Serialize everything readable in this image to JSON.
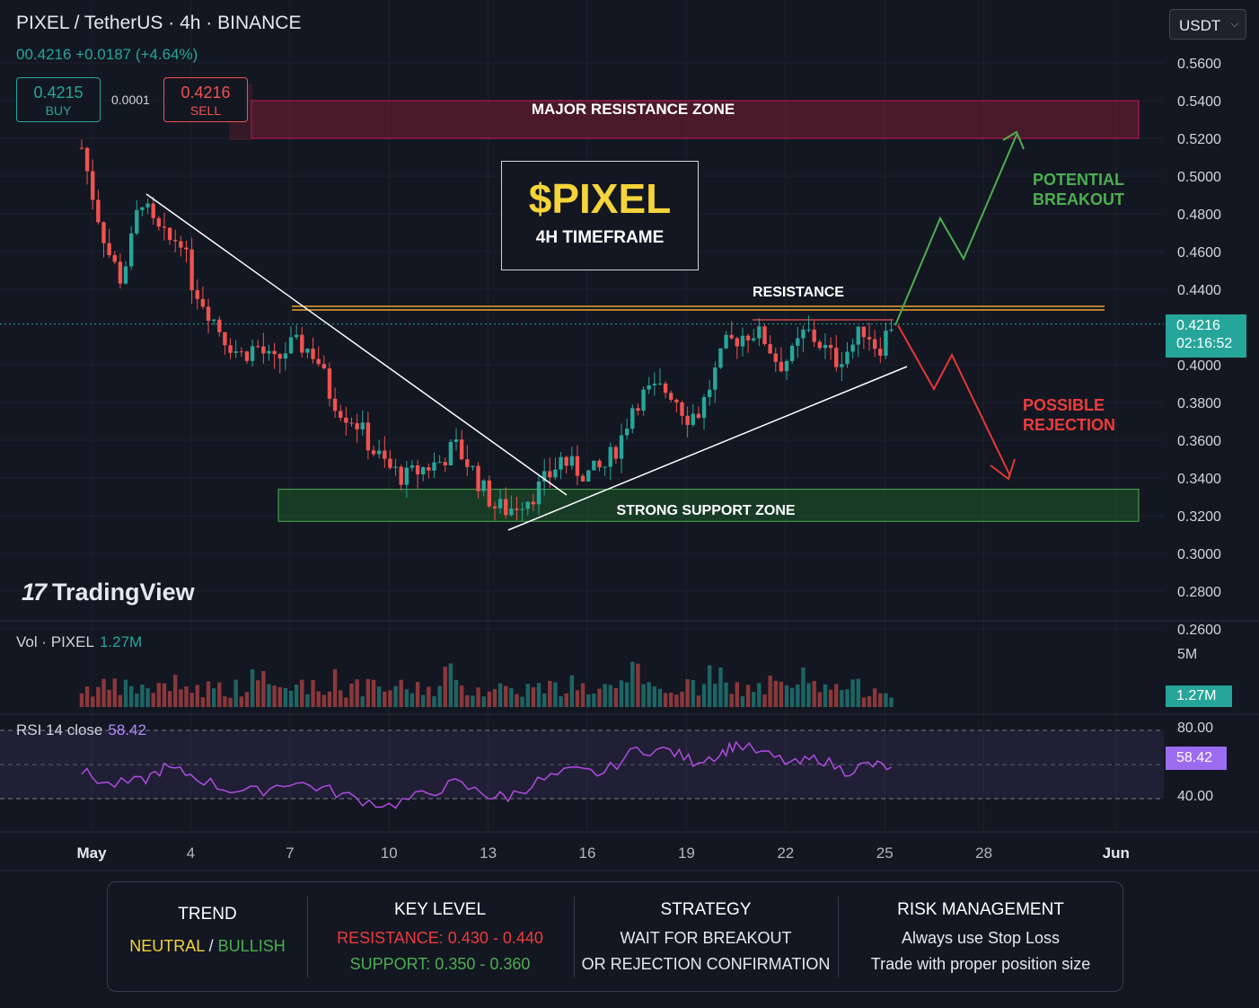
{
  "header": {
    "title": "PIXEL / TetherUS · 4h · BINANCE",
    "quote": "00.4216 +0.0187 (+4.64%)",
    "buy_price": "0.4215",
    "buy_label": "BUY",
    "spread": "0.0001",
    "sell_price": "0.4216",
    "sell_label": "SELL",
    "currency": "USDT"
  },
  "overlay": {
    "ticker": "$PIXEL",
    "timeframe": "4H TIMEFRAME",
    "major_resistance": "MAJOR RESISTANCE ZONE",
    "strong_support": "STRONG SUPPORT ZONE",
    "resistance": "RESISTANCE",
    "breakout_1": "POTENTIAL",
    "breakout_2": "BREAKOUT",
    "rejection_1": "POSSIBLE",
    "rejection_2": "REJECTION",
    "logo": "TradingView"
  },
  "tags": {
    "price": "0.4216",
    "countdown": "02:16:52",
    "volume": "1.27M",
    "rsi": "58.42"
  },
  "panes": {
    "vol_label": "Vol · PIXEL",
    "vol_value": "1.27M",
    "vol_axis": "5M",
    "rsi_label": "RSI 14 close",
    "rsi_value": "58.42",
    "rsi_axis": [
      "80.00",
      "40.00"
    ]
  },
  "summary": {
    "trend_h": "TREND",
    "trend_neutral": "NEUTRAL",
    "trend_sep": "/",
    "trend_bullish": "BULLISH",
    "key_h": "KEY LEVEL",
    "key_res": "RESISTANCE: 0.430 - 0.440",
    "key_sup": "SUPPORT: 0.350 - 0.360",
    "strat_h": "STRATEGY",
    "strat_1": "WAIT FOR BREAKOUT",
    "strat_2": "OR REJECTION CONFIRMATION",
    "risk_h": "RISK MANAGEMENT",
    "risk_1": "Always use Stop Loss",
    "risk_2": "Trade with proper position size"
  },
  "colors": {
    "up": "#26a69a",
    "down": "#ef5350",
    "bg": "#131722",
    "rsi": "#b04ce0",
    "resistance": "#f0a030"
  },
  "chart_data": {
    "type": "candlestick",
    "title": "PIXEL / TetherUS · 4h · BINANCE",
    "price_axis_ticks": [
      0.56,
      0.54,
      0.52,
      0.5,
      0.48,
      0.46,
      0.44,
      0.4,
      0.38,
      0.36,
      0.34,
      0.32,
      0.3,
      0.28,
      0.26
    ],
    "price_axis_labels": [
      "0.5600",
      "0.5400",
      "0.5200",
      "0.5000",
      "0.4800",
      "0.4600",
      "0.4400",
      "0.4000",
      "0.3800",
      "0.3600",
      "0.3400",
      "0.3200",
      "0.3000",
      "0.2800",
      "0.2600"
    ],
    "date_axis_labels": [
      {
        "label": "May",
        "day": 1
      },
      {
        "label": "4",
        "day": 4
      },
      {
        "label": "7",
        "day": 7
      },
      {
        "label": "10",
        "day": 10
      },
      {
        "label": "13",
        "day": 13
      },
      {
        "label": "16",
        "day": 16
      },
      {
        "label": "19",
        "day": 19
      },
      {
        "label": "22",
        "day": 22
      },
      {
        "label": "25",
        "day": 25
      },
      {
        "label": "28",
        "day": 28
      },
      {
        "label": "Jun",
        "day": 32
      }
    ],
    "close_path": [
      {
        "day": 0.7,
        "close": 0.515
      },
      {
        "day": 1.1,
        "close": 0.485
      },
      {
        "day": 1.5,
        "close": 0.46
      },
      {
        "day": 1.9,
        "close": 0.445
      },
      {
        "day": 2.2,
        "close": 0.465
      },
      {
        "day": 2.5,
        "close": 0.49
      },
      {
        "day": 2.8,
        "close": 0.475
      },
      {
        "day": 3.3,
        "close": 0.465
      },
      {
        "day": 3.7,
        "close": 0.468
      },
      {
        "day": 4.0,
        "close": 0.445
      },
      {
        "day": 4.5,
        "close": 0.43
      },
      {
        "day": 5.0,
        "close": 0.415
      },
      {
        "day": 5.5,
        "close": 0.405
      },
      {
        "day": 6.0,
        "close": 0.41
      },
      {
        "day": 6.5,
        "close": 0.4
      },
      {
        "day": 7.0,
        "close": 0.41
      },
      {
        "day": 7.4,
        "close": 0.41
      },
      {
        "day": 7.8,
        "close": 0.405
      },
      {
        "day": 8.2,
        "close": 0.385
      },
      {
        "day": 8.6,
        "close": 0.375
      },
      {
        "day": 9.0,
        "close": 0.37
      },
      {
        "day": 9.5,
        "close": 0.355
      },
      {
        "day": 10.0,
        "close": 0.345
      },
      {
        "day": 10.5,
        "close": 0.34
      },
      {
        "day": 11.0,
        "close": 0.345
      },
      {
        "day": 11.5,
        "close": 0.348
      },
      {
        "day": 12.0,
        "close": 0.357
      },
      {
        "day": 12.5,
        "close": 0.345
      },
      {
        "day": 12.8,
        "close": 0.335
      },
      {
        "day": 13.2,
        "close": 0.325
      },
      {
        "day": 13.6,
        "close": 0.323
      },
      {
        "day": 14.0,
        "close": 0.328
      },
      {
        "day": 14.4,
        "close": 0.332
      },
      {
        "day": 14.8,
        "close": 0.34
      },
      {
        "day": 15.2,
        "close": 0.35
      },
      {
        "day": 15.6,
        "close": 0.345
      },
      {
        "day": 16.0,
        "close": 0.342
      },
      {
        "day": 16.5,
        "close": 0.345
      },
      {
        "day": 17.0,
        "close": 0.36
      },
      {
        "day": 17.4,
        "close": 0.38
      },
      {
        "day": 17.8,
        "close": 0.385
      },
      {
        "day": 18.3,
        "close": 0.387
      },
      {
        "day": 18.6,
        "close": 0.385
      },
      {
        "day": 19.0,
        "close": 0.373
      },
      {
        "day": 19.4,
        "close": 0.375
      },
      {
        "day": 19.8,
        "close": 0.393
      },
      {
        "day": 20.2,
        "close": 0.41
      },
      {
        "day": 20.6,
        "close": 0.415
      },
      {
        "day": 21.0,
        "close": 0.418
      },
      {
        "day": 21.4,
        "close": 0.413
      },
      {
        "day": 21.8,
        "close": 0.4
      },
      {
        "day": 22.2,
        "close": 0.405
      },
      {
        "day": 22.6,
        "close": 0.418
      },
      {
        "day": 23.0,
        "close": 0.412
      },
      {
        "day": 23.5,
        "close": 0.402
      },
      {
        "day": 24.0,
        "close": 0.41
      },
      {
        "day": 24.4,
        "close": 0.42
      },
      {
        "day": 24.8,
        "close": 0.408
      },
      {
        "day": 25.2,
        "close": 0.4216
      }
    ],
    "resistance_line": 0.43,
    "current_price": 0.4216,
    "major_resistance_zone": [
      0.52,
      0.54
    ],
    "strong_support_zone": [
      0.317,
      0.334
    ],
    "rsi_path": [
      {
        "day": 0.7,
        "rsi": 56
      },
      {
        "day": 1.5,
        "rsi": 48
      },
      {
        "day": 2.5,
        "rsi": 50
      },
      {
        "day": 3.2,
        "rsi": 58
      },
      {
        "day": 4.0,
        "rsi": 54
      },
      {
        "day": 5.0,
        "rsi": 46
      },
      {
        "day": 6.0,
        "rsi": 44
      },
      {
        "day": 7.0,
        "rsi": 50
      },
      {
        "day": 8.0,
        "rsi": 46
      },
      {
        "day": 9.0,
        "rsi": 40
      },
      {
        "day": 10.0,
        "rsi": 36
      },
      {
        "day": 11.0,
        "rsi": 42
      },
      {
        "day": 12.0,
        "rsi": 49
      },
      {
        "day": 13.0,
        "rsi": 42
      },
      {
        "day": 13.6,
        "rsi": 41
      },
      {
        "day": 14.5,
        "rsi": 50
      },
      {
        "day": 15.5,
        "rsi": 56
      },
      {
        "day": 16.5,
        "rsi": 55
      },
      {
        "day": 17.5,
        "rsi": 69
      },
      {
        "day": 18.5,
        "rsi": 68
      },
      {
        "day": 19.2,
        "rsi": 62
      },
      {
        "day": 20.0,
        "rsi": 66
      },
      {
        "day": 20.5,
        "rsi": 72
      },
      {
        "day": 21.5,
        "rsi": 65
      },
      {
        "day": 22.3,
        "rsi": 60
      },
      {
        "day": 23.0,
        "rsi": 64
      },
      {
        "day": 23.8,
        "rsi": 56
      },
      {
        "day": 24.5,
        "rsi": 60
      },
      {
        "day": 25.2,
        "rsi": 58.42
      }
    ],
    "rsi_levels": [
      80,
      40
    ],
    "volume_axis_label": "5M",
    "last_volume": "1.27M"
  }
}
